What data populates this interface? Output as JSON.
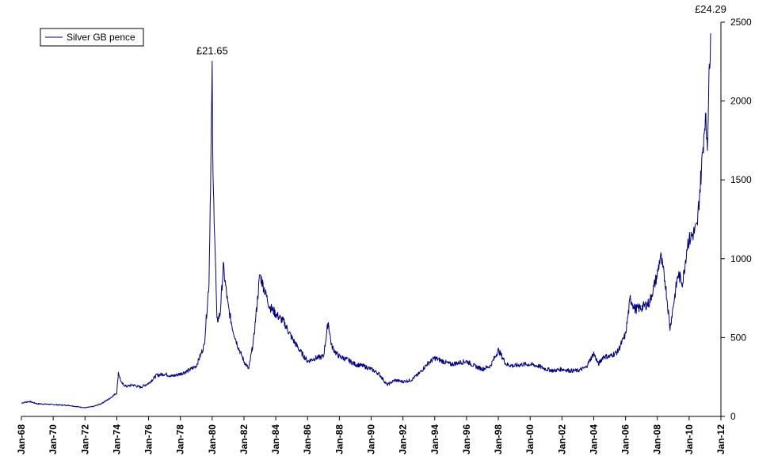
{
  "chart_data": {
    "type": "line",
    "title": "",
    "xlabel": "",
    "ylabel": "",
    "x_range": [
      "Jan-68",
      "Jan-12"
    ],
    "ylim": [
      0,
      2500
    ],
    "y_ticks": [
      "0",
      "500",
      "1000",
      "1500",
      "2000",
      "2500"
    ],
    "y_tick_values": [
      0,
      500,
      1000,
      1500,
      2000,
      2500
    ],
    "y_axis_side": "right",
    "x_ticks": [
      "Jan-68",
      "Jan-70",
      "Jan-72",
      "Jan-74",
      "Jan-76",
      "Jan-78",
      "Jan-80",
      "Jan-82",
      "Jan-84",
      "Jan-86",
      "Jan-88",
      "Jan-90",
      "Jan-92",
      "Jan-94",
      "Jan-96",
      "Jan-98",
      "Jan-00",
      "Jan-02",
      "Jan-04",
      "Jan-06",
      "Jan-08",
      "Jan-10",
      "Jan-12"
    ],
    "grid": false,
    "legend_position": "top-left",
    "series": [
      {
        "name": "Silver GB pence",
        "color": "#000080",
        "points": [
          [
            1968.0,
            85
          ],
          [
            1968.5,
            95
          ],
          [
            1969.0,
            80
          ],
          [
            1969.5,
            78
          ],
          [
            1970.0,
            75
          ],
          [
            1970.5,
            72
          ],
          [
            1971.0,
            70
          ],
          [
            1971.5,
            62
          ],
          [
            1972.0,
            55
          ],
          [
            1972.5,
            62
          ],
          [
            1973.0,
            80
          ],
          [
            1973.5,
            110
          ],
          [
            1974.0,
            150
          ],
          [
            1974.1,
            280
          ],
          [
            1974.3,
            210
          ],
          [
            1974.6,
            190
          ],
          [
            1975.0,
            200
          ],
          [
            1975.5,
            185
          ],
          [
            1976.0,
            210
          ],
          [
            1976.5,
            260
          ],
          [
            1977.0,
            270
          ],
          [
            1977.5,
            255
          ],
          [
            1978.0,
            270
          ],
          [
            1978.5,
            290
          ],
          [
            1979.0,
            320
          ],
          [
            1979.5,
            450
          ],
          [
            1979.8,
            850
          ],
          [
            1980.0,
            2165
          ],
          [
            1980.05,
            1500
          ],
          [
            1980.15,
            1200
          ],
          [
            1980.3,
            600
          ],
          [
            1980.5,
            650
          ],
          [
            1980.7,
            950
          ],
          [
            1981.0,
            700
          ],
          [
            1981.3,
            550
          ],
          [
            1981.6,
            450
          ],
          [
            1982.0,
            350
          ],
          [
            1982.3,
            300
          ],
          [
            1982.6,
            480
          ],
          [
            1983.0,
            900
          ],
          [
            1983.3,
            800
          ],
          [
            1983.6,
            700
          ],
          [
            1984.0,
            650
          ],
          [
            1984.5,
            600
          ],
          [
            1985.0,
            500
          ],
          [
            1985.5,
            420
          ],
          [
            1986.0,
            350
          ],
          [
            1986.5,
            370
          ],
          [
            1987.0,
            380
          ],
          [
            1987.3,
            600
          ],
          [
            1987.5,
            450
          ],
          [
            1987.8,
            400
          ],
          [
            1988.0,
            380
          ],
          [
            1988.5,
            360
          ],
          [
            1989.0,
            330
          ],
          [
            1989.5,
            320
          ],
          [
            1990.0,
            300
          ],
          [
            1990.5,
            270
          ],
          [
            1991.0,
            200
          ],
          [
            1991.5,
            230
          ],
          [
            1992.0,
            220
          ],
          [
            1992.5,
            230
          ],
          [
            1993.0,
            270
          ],
          [
            1993.5,
            330
          ],
          [
            1994.0,
            370
          ],
          [
            1994.5,
            350
          ],
          [
            1995.0,
            330
          ],
          [
            1995.5,
            340
          ],
          [
            1996.0,
            350
          ],
          [
            1996.5,
            320
          ],
          [
            1997.0,
            300
          ],
          [
            1997.5,
            320
          ],
          [
            1998.0,
            420
          ],
          [
            1998.5,
            330
          ],
          [
            1999.0,
            320
          ],
          [
            1999.5,
            330
          ],
          [
            2000.0,
            330
          ],
          [
            2000.5,
            320
          ],
          [
            2001.0,
            300
          ],
          [
            2001.5,
            290
          ],
          [
            2002.0,
            300
          ],
          [
            2002.5,
            290
          ],
          [
            2003.0,
            290
          ],
          [
            2003.5,
            310
          ],
          [
            2004.0,
            400
          ],
          [
            2004.3,
            330
          ],
          [
            2004.6,
            380
          ],
          [
            2005.0,
            380
          ],
          [
            2005.5,
            410
          ],
          [
            2006.0,
            520
          ],
          [
            2006.3,
            750
          ],
          [
            2006.6,
            680
          ],
          [
            2007.0,
            690
          ],
          [
            2007.5,
            720
          ],
          [
            2008.0,
            900
          ],
          [
            2008.2,
            1020
          ],
          [
            2008.5,
            850
          ],
          [
            2008.8,
            560
          ],
          [
            2009.0,
            700
          ],
          [
            2009.3,
            900
          ],
          [
            2009.6,
            850
          ],
          [
            2009.9,
            1100
          ],
          [
            2010.2,
            1150
          ],
          [
            2010.5,
            1200
          ],
          [
            2010.8,
            1600
          ],
          [
            2011.0,
            1900
          ],
          [
            2011.15,
            1750
          ],
          [
            2011.3,
            2300
          ],
          [
            2011.35,
            2429
          ]
        ]
      }
    ],
    "annotations": [
      {
        "text": "£21.65",
        "x": 1980.0,
        "y": 2165
      },
      {
        "text": "£24.29",
        "x": 2011.35,
        "y": 2429
      }
    ]
  }
}
